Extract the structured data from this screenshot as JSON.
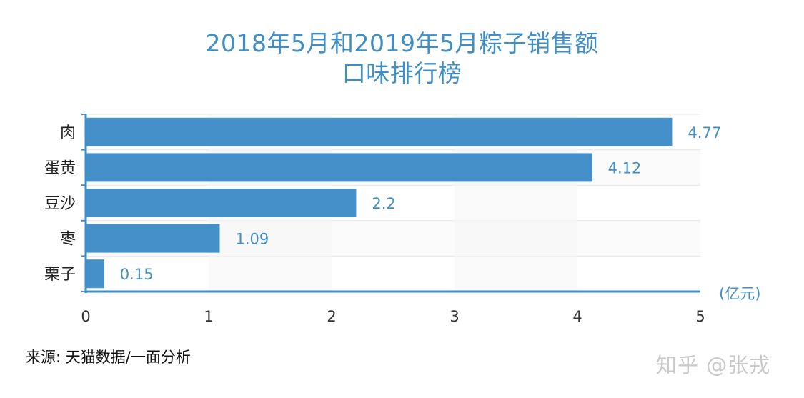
{
  "chart_data": {
    "type": "bar",
    "orientation": "horizontal",
    "title": [
      "2018年5月和2019年5月粽子销售额",
      "口味排行榜"
    ],
    "categories": [
      "肉",
      "蛋黄",
      "豆沙",
      "枣",
      "栗子"
    ],
    "values": [
      4.77,
      4.12,
      2.2,
      1.09,
      0.15
    ],
    "value_labels": [
      "4.77",
      "4.12",
      "2.2",
      "1.09",
      "0.15"
    ],
    "xlim": [
      0,
      5
    ],
    "x_ticks": [
      "0",
      "1",
      "2",
      "3",
      "4",
      "5"
    ],
    "unit": "(亿元)",
    "grid": true,
    "bar_color": "#4590c8",
    "axis_color": "#3f8fc6",
    "text_accent_color": "#3f8fc6"
  },
  "footer": {
    "source": "来源: 天猫数据/一面分析",
    "watermark": "知乎 @张戎"
  }
}
